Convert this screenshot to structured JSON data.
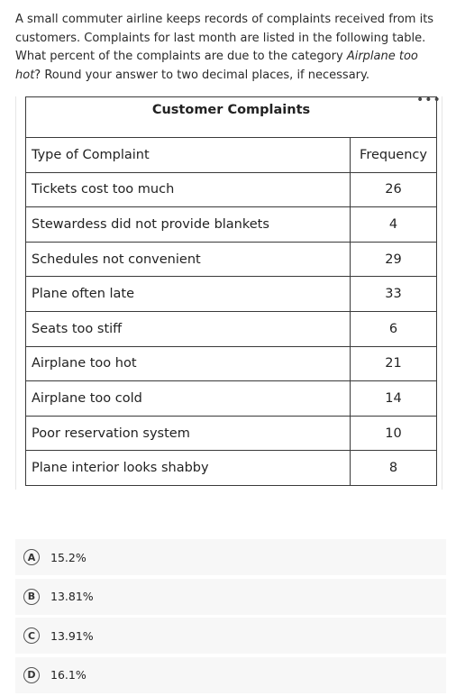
{
  "question": {
    "part1": "A small commuter airline keeps records of complaints received from its customers. Complaints for last month are listed in the following table. What percent of the complaints are due to the category ",
    "emphasis": "Airplane too hot",
    "part2": "? Round your answer to two decimal places, if necessary."
  },
  "more_icon": "•••",
  "table": {
    "title": "Customer Complaints",
    "header_type": "Type of Complaint",
    "header_freq": "Frequency",
    "rows": [
      {
        "type": "Tickets cost too much",
        "freq": "26"
      },
      {
        "type": "Stewardess did not provide blankets",
        "freq": "4"
      },
      {
        "type": "Schedules not convenient",
        "freq": "29"
      },
      {
        "type": "Plane often late",
        "freq": "33"
      },
      {
        "type": "Seats too stiff",
        "freq": "6"
      },
      {
        "type": "Airplane too hot",
        "freq": "21"
      },
      {
        "type": "Airplane too cold",
        "freq": "14"
      },
      {
        "type": "Poor reservation system",
        "freq": "10"
      },
      {
        "type": "Plane interior looks shabby",
        "freq": "8"
      }
    ]
  },
  "choices": [
    {
      "letter": "A",
      "text": "15.2%"
    },
    {
      "letter": "B",
      "text": "13.81%"
    },
    {
      "letter": "C",
      "text": "13.91%"
    },
    {
      "letter": "D",
      "text": "16.1%"
    }
  ]
}
